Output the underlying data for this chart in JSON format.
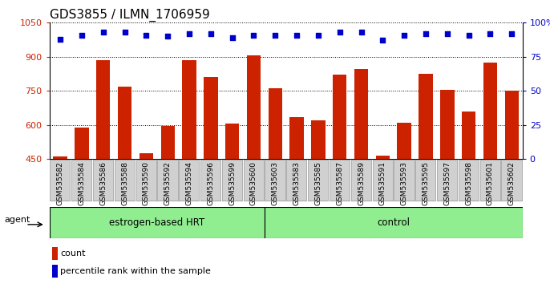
{
  "title": "GDS3855 / ILMN_1706959",
  "categories": [
    "GSM535582",
    "GSM535584",
    "GSM535586",
    "GSM535588",
    "GSM535590",
    "GSM535592",
    "GSM535594",
    "GSM535596",
    "GSM535599",
    "GSM535600",
    "GSM535603",
    "GSM535583",
    "GSM535585",
    "GSM535587",
    "GSM535589",
    "GSM535591",
    "GSM535593",
    "GSM535595",
    "GSM535597",
    "GSM535598",
    "GSM535601",
    "GSM535602"
  ],
  "bar_values": [
    460,
    590,
    885,
    770,
    475,
    595,
    885,
    810,
    605,
    905,
    760,
    635,
    620,
    820,
    845,
    465,
    610,
    825,
    755,
    660,
    875,
    750
  ],
  "percentile_values": [
    88,
    91,
    93,
    93,
    91,
    90,
    92,
    92,
    89,
    91,
    91,
    91,
    91,
    93,
    93,
    87,
    91,
    92,
    92,
    91,
    92,
    92
  ],
  "bar_color": "#cc2200",
  "dot_color": "#0000cc",
  "ylim_left": [
    450,
    1050
  ],
  "ylim_right": [
    0,
    100
  ],
  "yticks_left": [
    450,
    600,
    750,
    900,
    1050
  ],
  "yticks_right": [
    0,
    25,
    50,
    75,
    100
  ],
  "grid_values": [
    600,
    750,
    900
  ],
  "group1_label": "estrogen-based HRT",
  "group1_count": 10,
  "group2_label": "control",
  "group2_count": 12,
  "agent_label": "agent",
  "legend_count_label": "count",
  "legend_pct_label": "percentile rank within the sample",
  "group1_color": "#90ee90",
  "group2_color": "#90ee90",
  "bar_color_legend": "#cc2200",
  "dot_color_legend": "#0000cc",
  "tick_label_color_left": "#cc2200",
  "tick_label_color_right": "#0000cc",
  "title_fontsize": 11,
  "bar_width": 0.65,
  "xtick_bg_color": "#d0d0d0",
  "xtick_border_color": "#999999"
}
